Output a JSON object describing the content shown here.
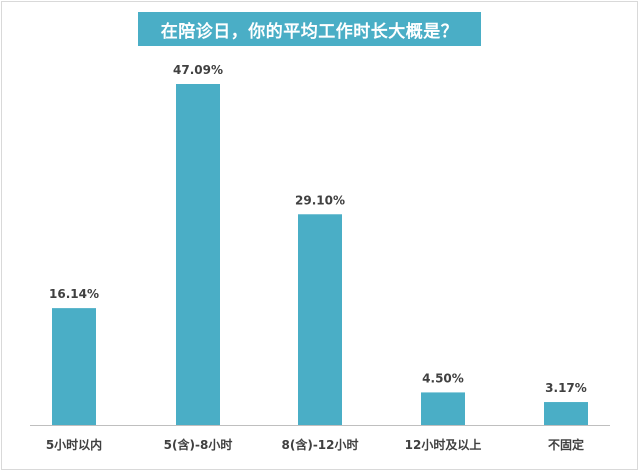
{
  "chart_data": {
    "type": "bar",
    "title": "在陪诊日，你的平均工作时长大概是？",
    "categories": [
      "5小时以内",
      "5(含)-8小时",
      "8(含)-12小时",
      "12小时及以上",
      "不固定"
    ],
    "values": [
      16.14,
      47.09,
      29.1,
      4.5,
      3.17
    ],
    "value_labels": [
      "16.14%",
      "47.09%",
      "29.10%",
      "4.50%",
      "3.17%"
    ],
    "xlabel": "",
    "ylabel": "",
    "ylim": [
      0,
      50
    ],
    "grid": false,
    "legend": "none",
    "colors": {
      "bar": "#4aaec6",
      "title_bg": "#4aaec6",
      "text": "#404040"
    }
  }
}
